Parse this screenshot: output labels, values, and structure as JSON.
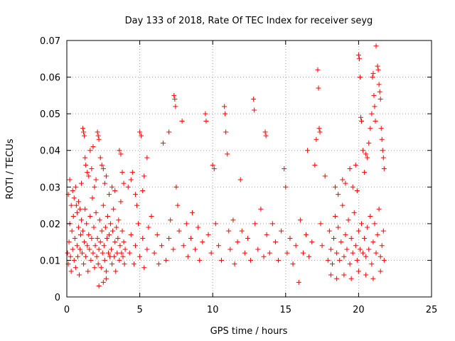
{
  "chart_data": {
    "type": "scatter",
    "title": "Day 133 of 2018, Rate Of TEC Index for receiver seyg",
    "xlabel": "GPS time / hours",
    "ylabel": "ROTI / TECUs",
    "xlim": [
      0,
      25
    ],
    "ylim": [
      0,
      0.07
    ],
    "x_ticks": [
      0,
      5,
      10,
      15,
      20,
      25
    ],
    "x_tick_labels": [
      "0",
      "5",
      "10",
      "15",
      "20",
      "25"
    ],
    "y_ticks": [
      0,
      0.01,
      0.02,
      0.03,
      0.04,
      0.05,
      0.06,
      0.07
    ],
    "y_tick_labels": [
      "0",
      "0.01",
      "0.02",
      "0.03",
      "0.04",
      "0.05",
      "0.06",
      "0.07"
    ],
    "grid": true,
    "marker": "plus",
    "color": "#ff0000",
    "series": [
      {
        "points": [
          [
            0.05,
            0.012
          ],
          [
            0.1,
            0.009
          ],
          [
            0.15,
            0.015
          ],
          [
            0.2,
            0.02
          ],
          [
            0.25,
            0.011
          ],
          [
            0.3,
            0.007
          ],
          [
            0.35,
            0.018
          ],
          [
            0.4,
            0.013
          ],
          [
            0.45,
            0.022
          ],
          [
            0.5,
            0.01
          ],
          [
            0.55,
            0.016
          ],
          [
            0.6,
            0.008
          ],
          [
            0.65,
            0.025
          ],
          [
            0.7,
            0.014
          ],
          [
            0.75,
            0.011
          ],
          [
            0.8,
            0.019
          ],
          [
            0.85,
            0.006
          ],
          [
            0.9,
            0.013
          ],
          [
            0.95,
            0.017
          ],
          [
            1.0,
            0.021
          ],
          [
            0.1,
            0.028
          ],
          [
            0.2,
            0.032
          ],
          [
            0.3,
            0.025
          ],
          [
            0.4,
            0.029
          ],
          [
            0.5,
            0.027
          ],
          [
            0.6,
            0.03
          ],
          [
            0.7,
            0.023
          ],
          [
            0.8,
            0.026
          ],
          [
            0.9,
            0.024
          ],
          [
            1.0,
            0.031
          ],
          [
            1.05,
            0.012
          ],
          [
            1.1,
            0.018
          ],
          [
            1.15,
            0.009
          ],
          [
            1.2,
            0.015
          ],
          [
            1.25,
            0.024
          ],
          [
            1.3,
            0.011
          ],
          [
            1.35,
            0.02
          ],
          [
            1.4,
            0.014
          ],
          [
            1.45,
            0.007
          ],
          [
            1.5,
            0.017
          ],
          [
            1.55,
            0.013
          ],
          [
            1.6,
            0.022
          ],
          [
            1.65,
            0.01
          ],
          [
            1.7,
            0.016
          ],
          [
            1.75,
            0.027
          ],
          [
            1.8,
            0.012
          ],
          [
            1.85,
            0.019
          ],
          [
            1.9,
            0.008
          ],
          [
            1.95,
            0.014
          ],
          [
            2.0,
            0.023
          ],
          [
            1.1,
            0.046
          ],
          [
            1.15,
            0.045
          ],
          [
            1.2,
            0.044
          ],
          [
            1.25,
            0.038
          ],
          [
            1.3,
            0.036
          ],
          [
            1.4,
            0.034
          ],
          [
            1.5,
            0.033
          ],
          [
            1.6,
            0.04
          ],
          [
            1.7,
            0.035
          ],
          [
            1.8,
            0.041
          ],
          [
            1.9,
            0.03
          ],
          [
            2.0,
            0.032
          ],
          [
            2.1,
            0.045
          ],
          [
            2.15,
            0.044
          ],
          [
            2.2,
            0.043
          ],
          [
            2.3,
            0.038
          ],
          [
            2.4,
            0.036
          ],
          [
            2.5,
            0.035
          ],
          [
            2.6,
            0.031
          ],
          [
            2.7,
            0.033
          ],
          [
            2.05,
            0.011
          ],
          [
            2.1,
            0.016
          ],
          [
            2.15,
            0.009
          ],
          [
            2.2,
            0.013
          ],
          [
            2.25,
            0.021
          ],
          [
            2.3,
            0.015
          ],
          [
            2.35,
            0.008
          ],
          [
            2.4,
            0.018
          ],
          [
            2.45,
            0.012
          ],
          [
            2.5,
            0.025
          ],
          [
            2.55,
            0.014
          ],
          [
            2.6,
            0.01
          ],
          [
            2.65,
            0.019
          ],
          [
            2.7,
            0.007
          ],
          [
            2.75,
            0.016
          ],
          [
            2.8,
            0.022
          ],
          [
            2.85,
            0.012
          ],
          [
            2.9,
            0.017
          ],
          [
            2.95,
            0.011
          ],
          [
            3.0,
            0.02
          ],
          [
            3.05,
            0.013
          ],
          [
            3.1,
            0.009
          ],
          [
            3.15,
            0.018
          ],
          [
            3.2,
            0.024
          ],
          [
            3.25,
            0.011
          ],
          [
            3.3,
            0.015
          ],
          [
            3.35,
            0.007
          ],
          [
            3.4,
            0.019
          ],
          [
            3.45,
            0.012
          ],
          [
            3.5,
            0.016
          ],
          [
            3.55,
            0.021
          ],
          [
            3.6,
            0.01
          ],
          [
            3.65,
            0.014
          ],
          [
            3.7,
            0.026
          ],
          [
            3.75,
            0.012
          ],
          [
            3.8,
            0.018
          ],
          [
            3.85,
            0.011
          ],
          [
            3.9,
            0.015
          ],
          [
            3.95,
            0.009
          ],
          [
            4.0,
            0.013
          ],
          [
            3.6,
            0.04
          ],
          [
            3.7,
            0.039
          ],
          [
            3.8,
            0.034
          ],
          [
            3.9,
            0.031
          ],
          [
            3.1,
            0.03
          ],
          [
            3.3,
            0.029
          ],
          [
            2.9,
            0.028
          ],
          [
            2.2,
            0.003
          ],
          [
            2.5,
            0.004
          ],
          [
            2.7,
            0.005
          ],
          [
            4.2,
            0.03
          ],
          [
            4.4,
            0.032
          ],
          [
            4.5,
            0.034
          ],
          [
            4.7,
            0.028
          ],
          [
            4.8,
            0.025
          ],
          [
            5.0,
            0.045
          ],
          [
            5.1,
            0.044
          ],
          [
            5.2,
            0.029
          ],
          [
            5.3,
            0.033
          ],
          [
            5.5,
            0.038
          ],
          [
            4.3,
            0.012
          ],
          [
            4.4,
            0.017
          ],
          [
            4.6,
            0.009
          ],
          [
            4.7,
            0.014
          ],
          [
            4.9,
            0.02
          ],
          [
            5.0,
            0.011
          ],
          [
            5.2,
            0.016
          ],
          [
            5.3,
            0.008
          ],
          [
            5.5,
            0.013
          ],
          [
            5.6,
            0.019
          ],
          [
            5.8,
            0.022
          ],
          [
            6.0,
            0.012
          ],
          [
            6.2,
            0.017
          ],
          [
            6.3,
            0.009
          ],
          [
            6.5,
            0.014
          ],
          [
            6.6,
            0.042
          ],
          [
            6.8,
            0.01
          ],
          [
            7.0,
            0.016
          ],
          [
            7.1,
            0.021
          ],
          [
            7.3,
            0.013
          ],
          [
            7.0,
            0.045
          ],
          [
            7.35,
            0.055
          ],
          [
            7.4,
            0.054
          ],
          [
            7.45,
            0.052
          ],
          [
            7.5,
            0.03
          ],
          [
            7.6,
            0.025
          ],
          [
            7.7,
            0.018
          ],
          [
            7.9,
            0.048
          ],
          [
            8.0,
            0.014
          ],
          [
            8.2,
            0.02
          ],
          [
            8.3,
            0.011
          ],
          [
            8.5,
            0.016
          ],
          [
            8.6,
            0.023
          ],
          [
            8.8,
            0.013
          ],
          [
            9.0,
            0.019
          ],
          [
            9.1,
            0.01
          ],
          [
            9.3,
            0.015
          ],
          [
            9.5,
            0.05
          ],
          [
            9.55,
            0.048
          ],
          [
            9.7,
            0.017
          ],
          [
            9.9,
            0.012
          ],
          [
            10.0,
            0.036
          ],
          [
            10.1,
            0.035
          ],
          [
            10.2,
            0.02
          ],
          [
            10.4,
            0.014
          ],
          [
            10.6,
            0.01
          ],
          [
            10.8,
            0.052
          ],
          [
            10.85,
            0.05
          ],
          [
            10.9,
            0.045
          ],
          [
            11.0,
            0.039
          ],
          [
            11.1,
            0.018
          ],
          [
            11.2,
            0.013
          ],
          [
            11.4,
            0.021
          ],
          [
            11.5,
            0.009
          ],
          [
            11.7,
            0.015
          ],
          [
            11.9,
            0.032
          ],
          [
            12.0,
            0.018
          ],
          [
            12.2,
            0.012
          ],
          [
            12.4,
            0.016
          ],
          [
            12.6,
            0.01
          ],
          [
            12.8,
            0.054
          ],
          [
            12.85,
            0.051
          ],
          [
            12.9,
            0.02
          ],
          [
            13.1,
            0.013
          ],
          [
            13.3,
            0.024
          ],
          [
            13.5,
            0.011
          ],
          [
            13.6,
            0.045
          ],
          [
            13.65,
            0.044
          ],
          [
            13.7,
            0.017
          ],
          [
            13.9,
            0.012
          ],
          [
            14.1,
            0.02
          ],
          [
            14.3,
            0.015
          ],
          [
            14.5,
            0.01
          ],
          [
            14.7,
            0.018
          ],
          [
            14.9,
            0.035
          ],
          [
            15.0,
            0.03
          ],
          [
            15.1,
            0.012
          ],
          [
            15.3,
            0.016
          ],
          [
            15.5,
            0.009
          ],
          [
            15.7,
            0.014
          ],
          [
            15.9,
            0.004
          ],
          [
            16.0,
            0.021
          ],
          [
            16.2,
            0.012
          ],
          [
            16.4,
            0.017
          ],
          [
            16.5,
            0.04
          ],
          [
            16.6,
            0.011
          ],
          [
            16.8,
            0.015
          ],
          [
            17.0,
            0.036
          ],
          [
            17.1,
            0.043
          ],
          [
            17.2,
            0.062
          ],
          [
            17.25,
            0.057
          ],
          [
            17.3,
            0.046
          ],
          [
            17.35,
            0.045
          ],
          [
            17.4,
            0.02
          ],
          [
            17.5,
            0.014
          ],
          [
            17.7,
            0.033
          ],
          [
            17.9,
            0.01
          ],
          [
            18.0,
            0.018
          ],
          [
            18.1,
            0.013
          ],
          [
            18.2,
            0.009
          ],
          [
            18.3,
            0.016
          ],
          [
            18.4,
            0.022
          ],
          [
            18.5,
            0.012
          ],
          [
            18.6,
            0.019
          ],
          [
            18.7,
            0.01
          ],
          [
            18.8,
            0.015
          ],
          [
            18.9,
            0.025
          ],
          [
            19.0,
            0.011
          ],
          [
            19.1,
            0.017
          ],
          [
            19.2,
            0.013
          ],
          [
            19.3,
            0.021
          ],
          [
            19.4,
            0.009
          ],
          [
            19.5,
            0.016
          ],
          [
            19.6,
            0.012
          ],
          [
            19.7,
            0.023
          ],
          [
            19.8,
            0.014
          ],
          [
            19.9,
            0.01
          ],
          [
            20.0,
            0.018
          ],
          [
            20.1,
            0.013
          ],
          [
            20.2,
            0.02
          ],
          [
            18.4,
            0.03
          ],
          [
            18.6,
            0.028
          ],
          [
            18.9,
            0.032
          ],
          [
            19.1,
            0.031
          ],
          [
            19.4,
            0.035
          ],
          [
            19.6,
            0.03
          ],
          [
            19.8,
            0.036
          ],
          [
            19.9,
            0.029
          ],
          [
            20.0,
            0.066
          ],
          [
            20.05,
            0.065
          ],
          [
            20.1,
            0.06
          ],
          [
            20.15,
            0.049
          ],
          [
            20.2,
            0.048
          ],
          [
            20.3,
            0.04
          ],
          [
            20.4,
            0.034
          ],
          [
            20.5,
            0.039
          ],
          [
            20.6,
            0.038
          ],
          [
            20.7,
            0.042
          ],
          [
            20.8,
            0.046
          ],
          [
            20.9,
            0.05
          ],
          [
            20.95,
            0.06
          ],
          [
            21.0,
            0.061
          ],
          [
            21.05,
            0.055
          ],
          [
            21.1,
            0.052
          ],
          [
            21.15,
            0.048
          ],
          [
            21.2,
            0.0685
          ],
          [
            21.3,
            0.063
          ],
          [
            21.35,
            0.062
          ],
          [
            21.4,
            0.058
          ],
          [
            21.45,
            0.056
          ],
          [
            21.5,
            0.054
          ],
          [
            21.55,
            0.046
          ],
          [
            21.6,
            0.043
          ],
          [
            21.65,
            0.04
          ],
          [
            21.7,
            0.038
          ],
          [
            21.75,
            0.035
          ],
          [
            20.3,
            0.012
          ],
          [
            20.4,
            0.016
          ],
          [
            20.5,
            0.011
          ],
          [
            20.6,
            0.019
          ],
          [
            20.7,
            0.013
          ],
          [
            20.8,
            0.022
          ],
          [
            20.9,
            0.009
          ],
          [
            21.0,
            0.015
          ],
          [
            21.1,
            0.02
          ],
          [
            21.2,
            0.012
          ],
          [
            21.3,
            0.017
          ],
          [
            21.4,
            0.024
          ],
          [
            21.5,
            0.011
          ],
          [
            21.6,
            0.014
          ],
          [
            21.7,
            0.018
          ],
          [
            21.75,
            0.01
          ],
          [
            18.1,
            0.006
          ],
          [
            18.5,
            0.005
          ],
          [
            19.0,
            0.006
          ],
          [
            19.5,
            0.005
          ],
          [
            20.0,
            0.007
          ],
          [
            20.5,
            0.006
          ],
          [
            21.0,
            0.005
          ],
          [
            21.5,
            0.007
          ]
        ]
      }
    ]
  }
}
